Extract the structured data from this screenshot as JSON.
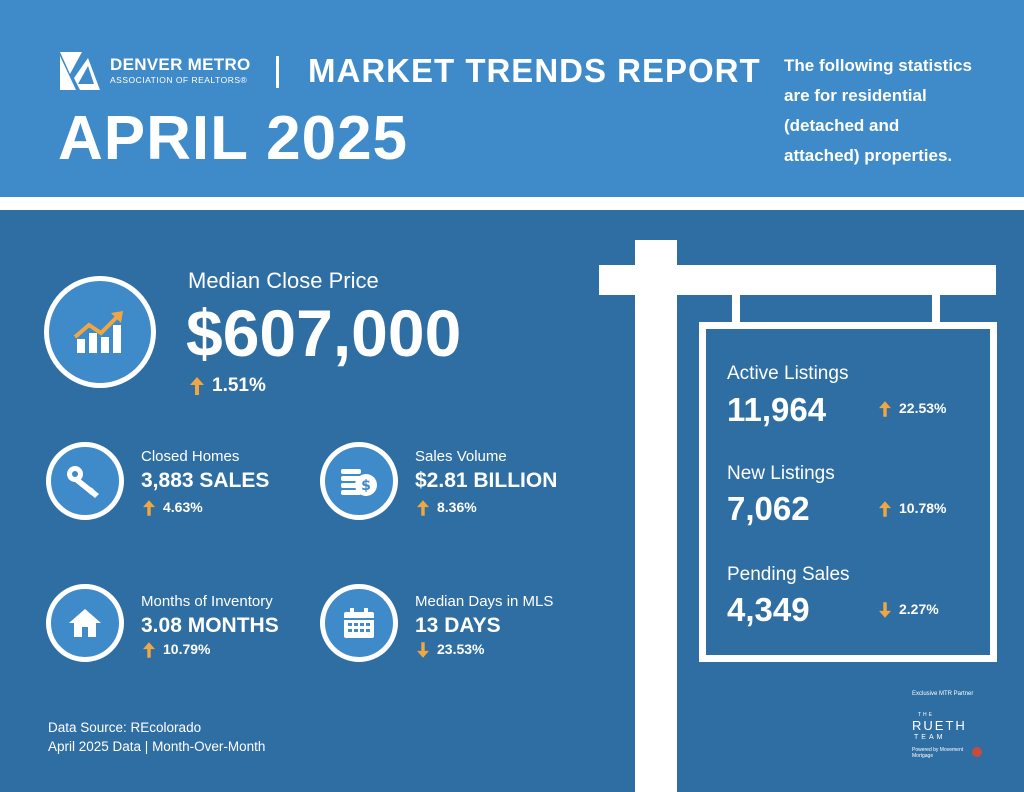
{
  "header": {
    "brand_name": "DENVER METRO",
    "brand_sub": "ASSOCIATION OF REALTORS®",
    "report_title": "MARKET TRENDS REPORT",
    "month": "APRIL 2025",
    "intro_lines": [
      "The following statistics",
      "are for residential",
      "(detached and",
      "attached) properties."
    ]
  },
  "colors": {
    "header_blue": "#3f8ac8",
    "panel_blue": "#2f6ea3",
    "up_arrow": "#f0a742",
    "down_arrow": "#f0a742"
  },
  "median_price": {
    "icon": "trend-chart-icon",
    "label": "Median Close Price",
    "value": "$607,000",
    "change": "1.51%",
    "direction": "up"
  },
  "stats": [
    {
      "id": "closed-homes",
      "icon": "key-icon",
      "label": "Closed Homes",
      "value": "3,883 SALES",
      "change": "4.63%",
      "direction": "up"
    },
    {
      "id": "sales-volume",
      "icon": "coins-icon",
      "label": "Sales Volume",
      "value": "$2.81 BILLION",
      "change": "8.36%",
      "direction": "up"
    },
    {
      "id": "months-inventory",
      "icon": "house-icon",
      "label": "Months of Inventory",
      "value": "3.08 MONTHS",
      "change": "10.79%",
      "direction": "up"
    },
    {
      "id": "median-days",
      "icon": "calendar-icon",
      "label": "Median Days in MLS",
      "value": "13 DAYS",
      "change": "23.53%",
      "direction": "down"
    }
  ],
  "sign": {
    "items": [
      {
        "label": "Active Listings",
        "value": "11,964",
        "change": "22.53%",
        "direction": "up"
      },
      {
        "label": "New Listings",
        "value": "7,062",
        "change": "10.78%",
        "direction": "up"
      },
      {
        "label": "Pending Sales",
        "value": "4,349",
        "change": "2.27%",
        "direction": "down"
      }
    ]
  },
  "source": {
    "line1": "Data Source: REcolorado",
    "line2": "April 2025 Data | Month-Over-Month"
  },
  "partner": {
    "label": "Exclusive MTR Partner",
    "the": "THE",
    "name": "RUETH",
    "team": "TEAM",
    "powered": "Powered by Movement Mortgage"
  }
}
